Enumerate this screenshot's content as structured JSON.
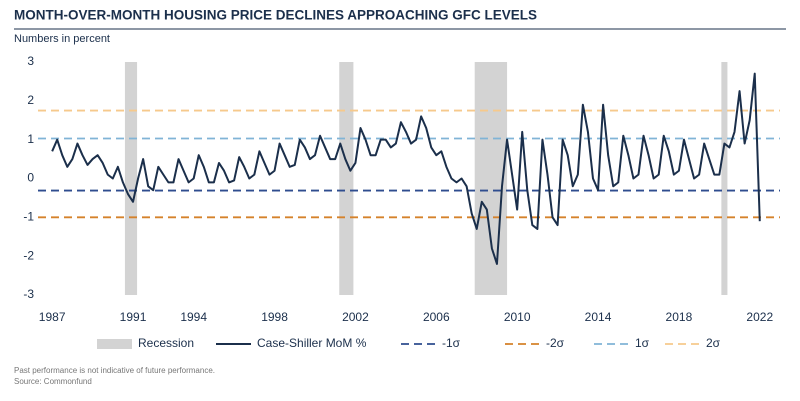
{
  "chart_data": {
    "type": "line",
    "title": "MONTH-OVER-MONTH HOUSING PRICE DECLINES APPROACHING GFC LEVELS",
    "subtitle": "Numbers in percent",
    "footnotes": [
      "Past performance is not indicative of future performance.",
      "Source: Commonfund"
    ],
    "xlim": [
      1986.3,
      2023
    ],
    "ylim": [
      -3,
      3
    ],
    "xticks": [
      1987,
      1991,
      1994,
      1998,
      2002,
      2006,
      2010,
      2014,
      2018,
      2022
    ],
    "yticks": [
      -3,
      -2,
      -1,
      0,
      1,
      2,
      3
    ],
    "x": [
      1987,
      1987.25,
      1987.5,
      1987.75,
      1988,
      1988.25,
      1988.5,
      1988.75,
      1989,
      1989.25,
      1989.5,
      1989.75,
      1990,
      1990.25,
      1990.5,
      1990.75,
      1991,
      1991.25,
      1991.5,
      1991.75,
      1992,
      1992.25,
      1992.5,
      1992.75,
      1993,
      1993.25,
      1993.5,
      1993.75,
      1994,
      1994.25,
      1994.5,
      1994.75,
      1995,
      1995.25,
      1995.5,
      1995.75,
      1996,
      1996.25,
      1996.5,
      1996.75,
      1997,
      1997.25,
      1997.5,
      1997.75,
      1998,
      1998.25,
      1998.5,
      1998.75,
      1999,
      1999.25,
      1999.5,
      1999.75,
      2000,
      2000.25,
      2000.5,
      2000.75,
      2001,
      2001.25,
      2001.5,
      2001.75,
      2002,
      2002.25,
      2002.5,
      2002.75,
      2003,
      2003.25,
      2003.5,
      2003.75,
      2004,
      2004.25,
      2004.5,
      2004.75,
      2005,
      2005.25,
      2005.5,
      2005.75,
      2006,
      2006.25,
      2006.5,
      2006.75,
      2007,
      2007.25,
      2007.5,
      2007.75,
      2008,
      2008.25,
      2008.5,
      2008.75,
      2009,
      2009.25,
      2009.5,
      2009.75,
      2010,
      2010.25,
      2010.5,
      2010.75,
      2011,
      2011.25,
      2011.5,
      2011.75,
      2012,
      2012.25,
      2012.5,
      2012.75,
      2013,
      2013.25,
      2013.5,
      2013.75,
      2014,
      2014.25,
      2014.5,
      2014.75,
      2015,
      2015.25,
      2015.5,
      2015.75,
      2016,
      2016.25,
      2016.5,
      2016.75,
      2017,
      2017.25,
      2017.5,
      2017.75,
      2018,
      2018.25,
      2018.5,
      2018.75,
      2019,
      2019.25,
      2019.5,
      2019.75,
      2020,
      2020.25,
      2020.5,
      2020.75,
      2021,
      2021.25,
      2021.5,
      2021.75,
      2022
    ],
    "series": [
      {
        "name": "Case-Shiller MoM %",
        "color": "#1b2f4b",
        "values": [
          0.7,
          1.0,
          0.6,
          0.3,
          0.5,
          0.9,
          0.6,
          0.35,
          0.5,
          0.6,
          0.4,
          0.1,
          0.0,
          0.3,
          -0.1,
          -0.4,
          -0.6,
          0.0,
          0.5,
          -0.2,
          -0.3,
          0.3,
          0.1,
          -0.1,
          -0.1,
          0.5,
          0.2,
          -0.1,
          0.0,
          0.6,
          0.3,
          -0.1,
          -0.1,
          0.4,
          0.2,
          -0.1,
          -0.05,
          0.55,
          0.3,
          0.0,
          0.1,
          0.7,
          0.4,
          0.1,
          0.2,
          0.9,
          0.6,
          0.3,
          0.35,
          1.0,
          0.8,
          0.5,
          0.6,
          1.1,
          0.8,
          0.5,
          0.5,
          0.9,
          0.5,
          0.2,
          0.4,
          1.3,
          1.0,
          0.6,
          0.6,
          1.0,
          1.0,
          0.8,
          0.9,
          1.45,
          1.2,
          0.9,
          1.0,
          1.6,
          1.3,
          0.8,
          0.6,
          0.7,
          0.3,
          0.0,
          -0.1,
          0.0,
          -0.2,
          -0.9,
          -1.3,
          -0.6,
          -0.8,
          -1.8,
          -2.2,
          -0.2,
          1.0,
          0.1,
          -0.8,
          1.2,
          -0.3,
          -1.2,
          -1.3,
          1.0,
          0.1,
          -1.0,
          -1.2,
          1.0,
          0.6,
          -0.2,
          0.1,
          1.9,
          1.2,
          0.0,
          -0.3,
          1.9,
          0.6,
          -0.2,
          -0.1,
          1.1,
          0.6,
          0.0,
          0.1,
          1.1,
          0.6,
          0.0,
          0.1,
          1.1,
          0.7,
          0.1,
          0.2,
          1.0,
          0.5,
          0.0,
          0.1,
          0.9,
          0.5,
          0.1,
          0.1,
          0.9,
          0.8,
          1.2,
          2.25,
          0.9,
          1.5,
          2.7,
          -1.1
        ]
      }
    ],
    "reference_lines": [
      {
        "name": "-1σ",
        "value": -0.31,
        "color": "#2f4d8f"
      },
      {
        "name": "-2σ",
        "value": -1.0,
        "color": "#d5822b"
      },
      {
        "name": "1σ",
        "value": 1.03,
        "color": "#80b4d6"
      },
      {
        "name": "2σ",
        "value": 1.75,
        "color": "#f6c98c"
      }
    ],
    "shaded_regions": {
      "name": "Recession",
      "color": "#d3d3d3",
      "ranges": [
        [
          1990.6,
          1991.2
        ],
        [
          2001.2,
          2001.9
        ],
        [
          2007.9,
          2009.5
        ],
        [
          2020.1,
          2020.4
        ]
      ]
    }
  }
}
